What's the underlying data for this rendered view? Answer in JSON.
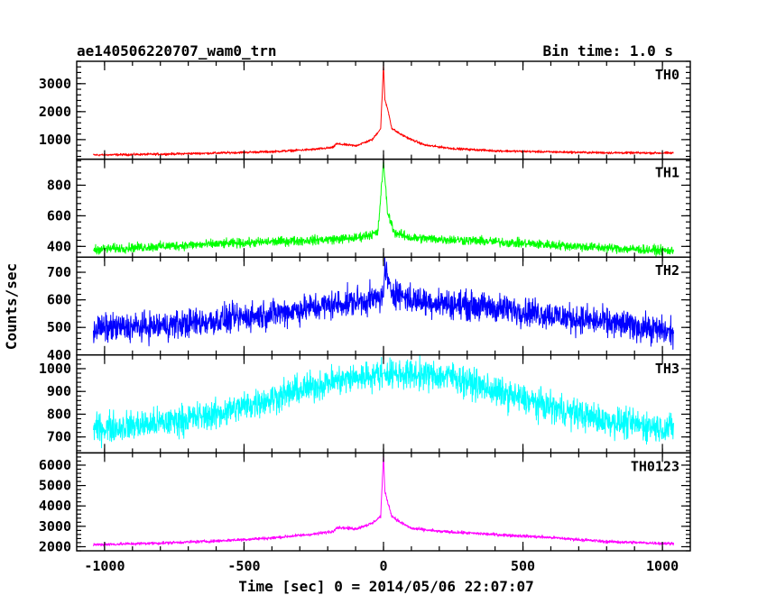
{
  "header": {
    "left_title": "ae140506220707_wam0_trn",
    "right_title": "Bin time: 1.0 s"
  },
  "axes": {
    "xlabel": "Time [sec] 0 = 2014/05/06 22:07:07",
    "ylabel": "Counts/sec"
  },
  "chart_data": {
    "type": "line",
    "title": "ae140506220707_wam0_trn",
    "subtitle": "Bin time: 1.0 s",
    "xlabel": "Time [sec] 0 = 2014/05/06 22:07:07",
    "ylabel": "Counts/sec",
    "xlim": [
      -1100,
      1100
    ],
    "xticks": [
      -1000,
      -500,
      0,
      500,
      1000
    ],
    "grid": false,
    "panels": [
      {
        "name": "TH0",
        "color": "#ff0000",
        "ylim": [
          300,
          3800
        ],
        "yticks": [
          1000,
          2000,
          3000
        ],
        "x": [
          -1040,
          -800,
          -600,
          -400,
          -250,
          -180,
          -170,
          -100,
          -40,
          -10,
          0,
          5,
          15,
          30,
          60,
          100,
          150,
          250,
          400,
          600,
          800,
          1040
        ],
        "y": [
          450,
          480,
          520,
          570,
          650,
          720,
          850,
          780,
          1000,
          1400,
          3700,
          2400,
          2100,
          1400,
          1200,
          1000,
          800,
          680,
          600,
          560,
          530,
          520
        ],
        "noise": 30
      },
      {
        "name": "TH1",
        "color": "#00ff00",
        "ylim": [
          330,
          970
        ],
        "yticks": [
          400,
          600,
          800
        ],
        "x": [
          -1040,
          -800,
          -600,
          -400,
          -200,
          -100,
          -20,
          0,
          5,
          15,
          40,
          100,
          300,
          600,
          800,
          1040
        ],
        "y": [
          380,
          400,
          415,
          430,
          445,
          455,
          490,
          960,
          830,
          620,
          490,
          455,
          440,
          410,
          390,
          370
        ],
        "noise": 22
      },
      {
        "name": "TH2",
        "color": "#0000ff",
        "ylim": [
          400,
          755
        ],
        "yticks": [
          400,
          500,
          600,
          700
        ],
        "x": [
          -1040,
          -800,
          -600,
          -400,
          -200,
          -50,
          0,
          5,
          20,
          100,
          300,
          500,
          700,
          900,
          1040
        ],
        "y": [
          495,
          505,
          525,
          550,
          580,
          600,
          610,
          730,
          640,
          600,
          580,
          560,
          530,
          505,
          480
        ],
        "noise": 38
      },
      {
        "name": "TH3",
        "color": "#00ffff",
        "ylim": [
          630,
          1060
        ],
        "yticks": [
          700,
          800,
          900,
          1000
        ],
        "x": [
          -1040,
          -800,
          -600,
          -400,
          -200,
          -50,
          0,
          100,
          250,
          400,
          600,
          800,
          1040
        ],
        "y": [
          735,
          760,
          800,
          870,
          940,
          970,
          980,
          975,
          965,
          900,
          830,
          770,
          735
        ],
        "noise": 48
      },
      {
        "name": "TH0123",
        "color": "#ff00ff",
        "ylim": [
          1800,
          6600
        ],
        "yticks": [
          2000,
          3000,
          4000,
          5000,
          6000
        ],
        "x": [
          -1040,
          -800,
          -600,
          -400,
          -250,
          -180,
          -170,
          -100,
          -40,
          -10,
          0,
          5,
          15,
          30,
          60,
          100,
          200,
          400,
          600,
          800,
          1040
        ],
        "y": [
          2100,
          2180,
          2280,
          2430,
          2620,
          2750,
          2950,
          2880,
          3150,
          3500,
          6500,
          4700,
          4200,
          3500,
          3200,
          2900,
          2750,
          2600,
          2450,
          2250,
          2150
        ],
        "noise": 55
      }
    ]
  }
}
